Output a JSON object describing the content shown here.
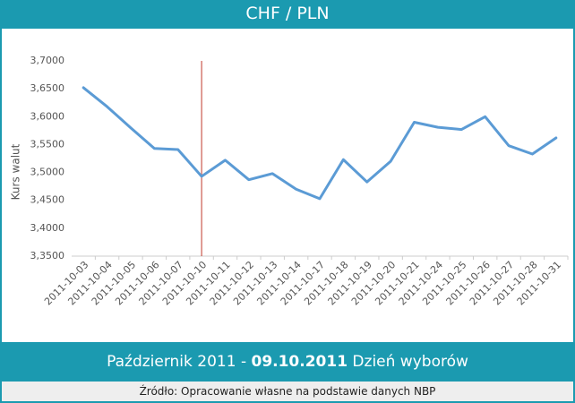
{
  "header": {
    "title": "CHF / PLN"
  },
  "chart_data": {
    "type": "line",
    "y_label": "Kurs walut",
    "categories": [
      "2011-10-03",
      "2011-10-04",
      "2011-10-05",
      "2011-10-06",
      "2011-10-07",
      "2011-10-10",
      "2011-10-11",
      "2011-10-12",
      "2011-10-13",
      "2011-10-14",
      "2011-10-17",
      "2011-10-18",
      "2011-10-19",
      "2011-10-20",
      "2011-10-21",
      "2011-10-24",
      "2011-10-25",
      "2011-10-26",
      "2011-10-27",
      "2011-10-28",
      "2011-10-31"
    ],
    "values": [
      3.652,
      3.618,
      3.58,
      3.543,
      3.541,
      3.493,
      3.522,
      3.487,
      3.498,
      3.47,
      3.453,
      3.523,
      3.483,
      3.52,
      3.59,
      3.581,
      3.577,
      3.6,
      3.548,
      3.533,
      3.562
    ],
    "color": "#5b9bd5",
    "ylim": [
      3.35,
      3.7
    ],
    "yticks": [
      {
        "value": 3.35,
        "label": "3,3500"
      },
      {
        "value": 3.4,
        "label": "3,4000"
      },
      {
        "value": 3.45,
        "label": "3,4500"
      },
      {
        "value": 3.5,
        "label": "3,5000"
      },
      {
        "value": 3.55,
        "label": "3,5500"
      },
      {
        "value": 3.6,
        "label": "3,6000"
      },
      {
        "value": 3.65,
        "label": "3,6500"
      },
      {
        "value": 3.7,
        "label": "3,7000"
      }
    ],
    "grid": false,
    "vline_at": "2011-10-10",
    "vline_color": "#c0392b"
  },
  "caption": {
    "before": "Październik 2011 - ",
    "bold": "09.10.2011",
    "after": " Dzień wyborów"
  },
  "footer": {
    "source": "Źródło: Opracowanie własne na podstawie danych NBP"
  }
}
